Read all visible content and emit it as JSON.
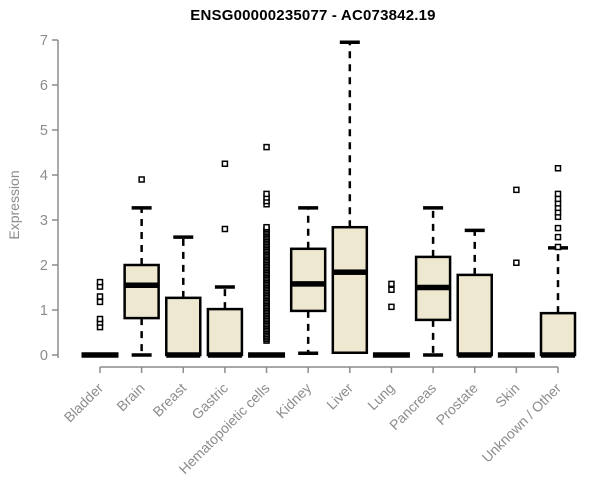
{
  "colors": {
    "background": "#ffffff",
    "box_fill": "#EDE8CF",
    "box_stroke": "#000000",
    "median": "#000000",
    "axis": "#8c8c8c",
    "title": "#000000"
  },
  "chart_data": {
    "type": "boxplot",
    "title": "ENSG00000235077 - AC073842.19",
    "ylabel": "Expression",
    "xlabel": "",
    "ylim": [
      0,
      7
    ],
    "yticks": [
      0,
      1,
      2,
      3,
      4,
      5,
      6,
      7
    ],
    "grid": false,
    "legend": false,
    "categories": [
      "Bladder",
      "Brain",
      "Breast",
      "Gastric",
      "Hematopoietic cells",
      "Kidney",
      "Liver",
      "Lung",
      "Pancreas",
      "Prostate",
      "Skin",
      "Unknown / Other"
    ],
    "boxes": [
      {
        "label": "Bladder",
        "q1": 0,
        "median": 0,
        "q3": 0,
        "whisker_low": 0,
        "whisker_high": 0,
        "outliers": [
          0.62,
          0.72,
          0.8,
          1.18,
          1.3,
          1.52,
          1.62
        ]
      },
      {
        "label": "Brain",
        "q1": 0.82,
        "median": 1.55,
        "q3": 2.0,
        "whisker_low": 0,
        "whisker_high": 3.27,
        "outliers": [
          3.9
        ]
      },
      {
        "label": "Breast",
        "q1": 0,
        "median": 0,
        "q3": 1.27,
        "whisker_low": 0,
        "whisker_high": 2.62,
        "outliers": []
      },
      {
        "label": "Gastric",
        "q1": 0,
        "median": 0,
        "q3": 1.02,
        "whisker_low": 0,
        "whisker_high": 1.51,
        "outliers": [
          2.8,
          4.25
        ]
      },
      {
        "label": "Hematopoietic cells",
        "q1": 0,
        "median": 0,
        "q3": 0,
        "whisker_low": 0,
        "whisker_high": 0,
        "outliers": [
          3.35,
          3.42,
          3.5,
          3.58,
          4.62
        ],
        "outlier_band": {
          "min": 0.32,
          "max": 2.84,
          "count": 70
        }
      },
      {
        "label": "Kidney",
        "q1": 0.98,
        "median": 1.58,
        "q3": 2.36,
        "whisker_low": 0.04,
        "whisker_high": 3.27,
        "outliers": []
      },
      {
        "label": "Liver",
        "q1": 0.05,
        "median": 1.84,
        "q3": 2.84,
        "whisker_low": 0.05,
        "whisker_high": 6.95,
        "outliers": []
      },
      {
        "label": "Lung",
        "q1": 0,
        "median": 0,
        "q3": 0,
        "whisker_low": 0,
        "whisker_high": 0,
        "outliers": [
          1.07,
          1.45,
          1.58
        ]
      },
      {
        "label": "Pancreas",
        "q1": 0.78,
        "median": 1.5,
        "q3": 2.18,
        "whisker_low": 0,
        "whisker_high": 3.27,
        "outliers": []
      },
      {
        "label": "Prostate",
        "q1": 0,
        "median": 0,
        "q3": 1.78,
        "whisker_low": 0,
        "whisker_high": 2.77,
        "outliers": []
      },
      {
        "label": "Skin",
        "q1": 0,
        "median": 0,
        "q3": 0,
        "whisker_low": 0,
        "whisker_high": 0,
        "outliers": [
          2.05,
          3.67
        ]
      },
      {
        "label": "Unknown / Other",
        "q1": 0,
        "median": 0,
        "q3": 0.93,
        "whisker_low": 0,
        "whisker_high": 2.38,
        "outliers": [
          2.4,
          2.62,
          2.82,
          3.07,
          3.17,
          3.27,
          3.37,
          3.47,
          3.58,
          4.15
        ]
      }
    ]
  }
}
